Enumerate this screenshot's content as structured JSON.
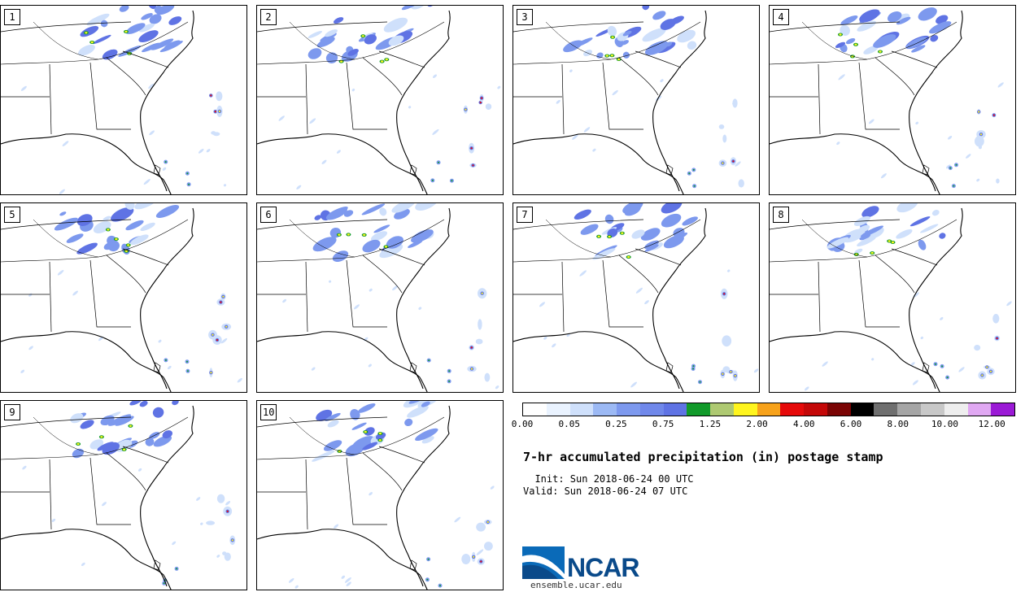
{
  "panels": [
    {
      "label": "1"
    },
    {
      "label": "2"
    },
    {
      "label": "3"
    },
    {
      "label": "4"
    },
    {
      "label": "5"
    },
    {
      "label": "6"
    },
    {
      "label": "7"
    },
    {
      "label": "8"
    },
    {
      "label": "9"
    },
    {
      "label": "10"
    }
  ],
  "colorbar": {
    "colors": [
      "#ffffff",
      "#eaf3ff",
      "#cfe0fb",
      "#9cb9f4",
      "#7d99ee",
      "#7088ea",
      "#5f73e4",
      "#119a2a",
      "#aec972",
      "#fff51e",
      "#f7a21b",
      "#e60a0a",
      "#c40808",
      "#7a0404",
      "#000000",
      "#6f6f6f",
      "#a5a5a5",
      "#c8c8c8",
      "#eeeeee",
      "#e0a8f2",
      "#9b1ad6"
    ],
    "tick_labels": [
      "0.00",
      "0.05",
      "0.25",
      "0.75",
      "1.25",
      "2.00",
      "4.00",
      "6.00",
      "8.00",
      "10.00",
      "12.00"
    ]
  },
  "title": "7-hr accumulated precipitation (in) postage stamp",
  "init": "  Init: Sun 2018-06-24 00 UTC",
  "valid": "Valid: Sun 2018-06-24 07 UTC",
  "logo_text": "NCAR",
  "site": "ensemble.ucar.edu",
  "precip_colors": {
    "light": "#cfe0fb",
    "medium": "#7d99ee",
    "heavy": "#5f73e4",
    "green": "#119a2a",
    "yellow": "#fff51e",
    "orange": "#f7a21b",
    "red": "#e60a0a"
  }
}
